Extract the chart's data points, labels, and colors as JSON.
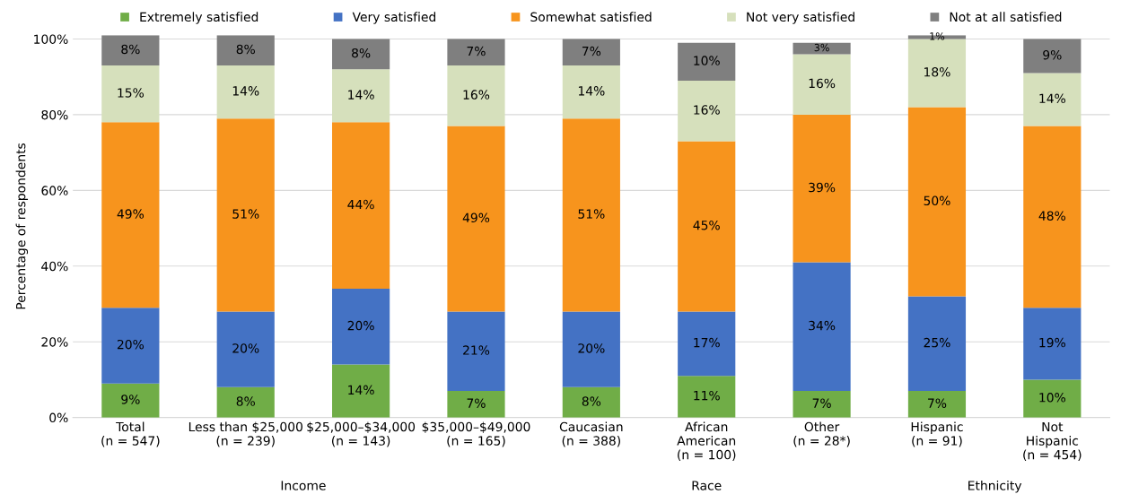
{
  "chart_data": {
    "type": "bar",
    "stacked": true,
    "ylabel": "Percentage of respondents",
    "categories": [
      "Total\n(n = 547)",
      "Less than $25,000\n(n = 239)",
      "$25,000–$34,000\n(n = 143)",
      "$35,000–$49,000\n(n = 165)",
      "Caucasian\n(n = 388)",
      "African\nAmerican\n(n = 100)",
      "Other\n(n = 28*)",
      "Hispanic\n(n = 91)",
      "Not\nHispanic\n(n = 454)"
    ],
    "series": [
      {
        "name": "Extremely satisfied",
        "color": "#70ad47",
        "values": [
          9,
          8,
          14,
          7,
          8,
          11,
          7,
          7,
          10
        ],
        "value_labels": [
          "9%",
          "8%",
          "14%",
          "7%",
          "8%",
          "11%",
          "7%",
          "7%",
          "10%"
        ]
      },
      {
        "name": "Very satisfied",
        "color": "#4472c4",
        "values": [
          20,
          20,
          20,
          21,
          20,
          17,
          34,
          25,
          19
        ],
        "value_labels": [
          "20%",
          "20%",
          "20%",
          "21%",
          "20%",
          "17%",
          "34%",
          "25%",
          "19%"
        ]
      },
      {
        "name": "Somewhat satisfied",
        "color": "#f7941d",
        "values": [
          49,
          51,
          44,
          49,
          51,
          45,
          39,
          50,
          48
        ],
        "value_labels": [
          "49%",
          "51%",
          "44%",
          "49%",
          "51%",
          "45%",
          "39%",
          "50%",
          "48%"
        ]
      },
      {
        "name": "Not very satisfied",
        "color": "#d6e0bc",
        "values": [
          15,
          14,
          14,
          16,
          14,
          16,
          16,
          18,
          14
        ],
        "value_labels": [
          "15%",
          "14%",
          "14%",
          "16%",
          "14%",
          "16%",
          "16%",
          "18%",
          "14%"
        ]
      },
      {
        "name": "Not at all satisfied",
        "color": "#7f7f7f",
        "values": [
          8,
          8,
          8,
          7,
          7,
          10,
          3,
          1,
          9
        ],
        "value_labels": [
          "8%",
          "8%",
          "8%",
          "7%",
          "7%",
          "10%",
          "3%",
          "1%",
          "9%"
        ]
      }
    ],
    "ylim": [
      0,
      101
    ],
    "yticks": [
      {
        "value": 0,
        "label": "0%"
      },
      {
        "value": 20,
        "label": "20%"
      },
      {
        "value": 40,
        "label": "40%"
      },
      {
        "value": 60,
        "label": "60%"
      },
      {
        "value": 80,
        "label": "80%"
      },
      {
        "value": 100,
        "label": "100%"
      }
    ],
    "grid": "y",
    "legend": "top",
    "annotations": [
      "Income",
      "Race",
      "Ethnicity"
    ]
  }
}
